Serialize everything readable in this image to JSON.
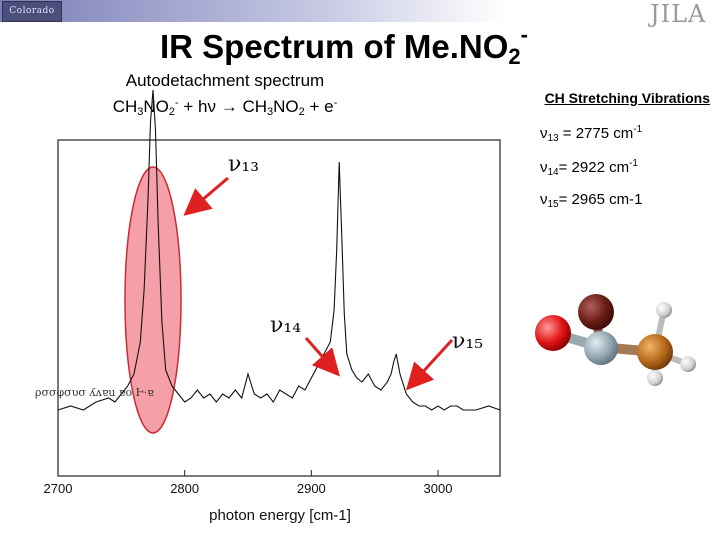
{
  "header": {
    "logo_left_text": "Colorado",
    "logo_right_text": "JILA"
  },
  "title": {
    "main": "IR Spectrum of Me.NO",
    "sub": "2",
    "sup": "-"
  },
  "subtitle": {
    "line1": "Autodetachment spectrum",
    "reaction_parts": [
      "CH",
      "3",
      "NO",
      "2",
      "-",
      " + hν → CH",
      "3",
      "NO",
      "2",
      " + e",
      "-"
    ]
  },
  "vibrations": {
    "heading": "CH Stretching Vibrations",
    "items": [
      {
        "symbol": "ν",
        "sub": "13",
        "text": " = 2775 cm",
        "sup": "-1"
      },
      {
        "symbol": "ν",
        "sub": "14",
        "text": "= 2922 cm",
        "sup": "-1"
      },
      {
        "symbol": "ν",
        "sub": "15",
        "text": "= 2965 cm-1",
        "sup": ""
      }
    ]
  },
  "plot_labels": {
    "nu13": "ν₁₃",
    "nu14": "ν₁₄",
    "nu15": "ν₁₅",
    "left_scale_text": "ρσσφσυσ ʎʌɐu ɐo Ⱶ·ɐ"
  },
  "chart_data": {
    "type": "line",
    "title": "",
    "xlabel": "photon energy [cm-1]",
    "ylabel": "",
    "xlim": [
      2700,
      3050
    ],
    "ylim": [
      0,
      1
    ],
    "x_ticks": [
      2700,
      2800,
      2900,
      3000
    ],
    "x_tick_labels": [
      "2700",
      "2800",
      "2900",
      "3000"
    ],
    "series": [
      {
        "name": "Autodetachment spectrum",
        "x": [
          2700,
          2710,
          2720,
          2730,
          2740,
          2745,
          2750,
          2755,
          2760,
          2765,
          2768,
          2771,
          2773,
          2775,
          2777,
          2779,
          2782,
          2785,
          2790,
          2795,
          2800,
          2805,
          2810,
          2815,
          2820,
          2825,
          2830,
          2835,
          2840,
          2845,
          2850,
          2855,
          2860,
          2865,
          2870,
          2875,
          2880,
          2885,
          2890,
          2895,
          2900,
          2905,
          2910,
          2915,
          2918,
          2920,
          2922,
          2924,
          2926,
          2928,
          2932,
          2936,
          2940,
          2945,
          2950,
          2955,
          2960,
          2963,
          2965,
          2967,
          2970,
          2975,
          2980,
          2985,
          2990,
          2995,
          3000,
          3005,
          3010,
          3015,
          3020,
          3030,
          3040,
          3050
        ],
        "values": [
          0.08,
          0.09,
          0.08,
          0.1,
          0.11,
          0.1,
          0.12,
          0.14,
          0.17,
          0.25,
          0.38,
          0.6,
          0.8,
          0.88,
          0.78,
          0.55,
          0.3,
          0.18,
          0.14,
          0.12,
          0.1,
          0.11,
          0.13,
          0.11,
          0.12,
          0.1,
          0.12,
          0.11,
          0.13,
          0.11,
          0.17,
          0.12,
          0.11,
          0.12,
          0.1,
          0.13,
          0.12,
          0.11,
          0.14,
          0.13,
          0.16,
          0.19,
          0.22,
          0.25,
          0.33,
          0.48,
          0.7,
          0.52,
          0.32,
          0.22,
          0.18,
          0.16,
          0.15,
          0.17,
          0.14,
          0.13,
          0.15,
          0.17,
          0.2,
          0.22,
          0.17,
          0.12,
          0.1,
          0.09,
          0.09,
          0.08,
          0.09,
          0.08,
          0.09,
          0.09,
          0.08,
          0.08,
          0.09,
          0.08
        ]
      }
    ],
    "highlight_region": {
      "x_center": 2775,
      "label": "ν13"
    },
    "annotations": [
      {
        "label": "ν13",
        "x": 2775
      },
      {
        "label": "ν14",
        "x": 2922
      },
      {
        "label": "ν15",
        "x": 2965
      }
    ]
  }
}
